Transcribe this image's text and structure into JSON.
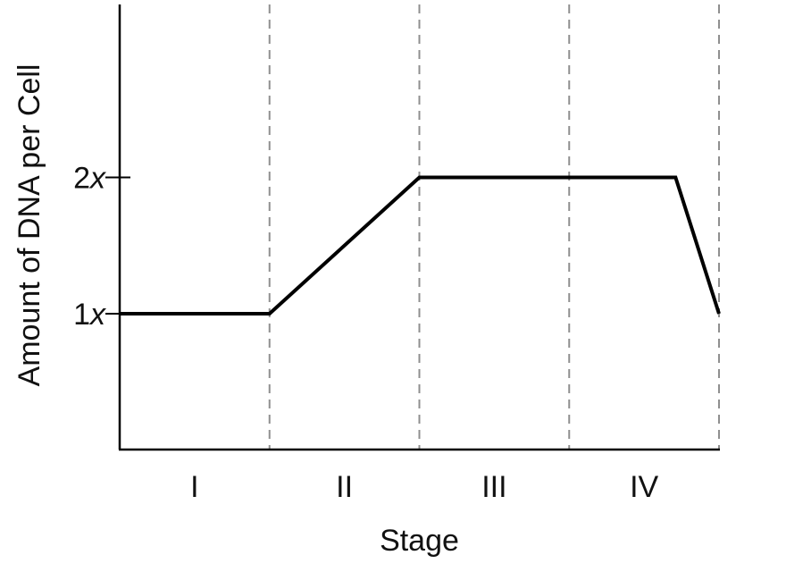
{
  "chart_data": {
    "type": "line",
    "xlabel": "Stage",
    "ylabel": "Amount of DNA per Cell",
    "stages": [
      "I",
      "II",
      "III",
      "IV"
    ],
    "xlim": [
      0,
      4
    ],
    "ylim": [
      0,
      3
    ],
    "yticks": [
      {
        "value": 1,
        "num": "1",
        "var": "x"
      },
      {
        "value": 2,
        "num": "2",
        "var": "x"
      }
    ],
    "series": [
      {
        "x": [
          0,
          1,
          2,
          3.71,
          4
        ],
        "y": [
          1,
          1,
          2,
          2,
          1
        ]
      }
    ],
    "stage_dividers": [
      1,
      2,
      3,
      4
    ],
    "grid": false,
    "colors": {
      "line": "#000000",
      "divider": "#8f8f8f"
    }
  }
}
